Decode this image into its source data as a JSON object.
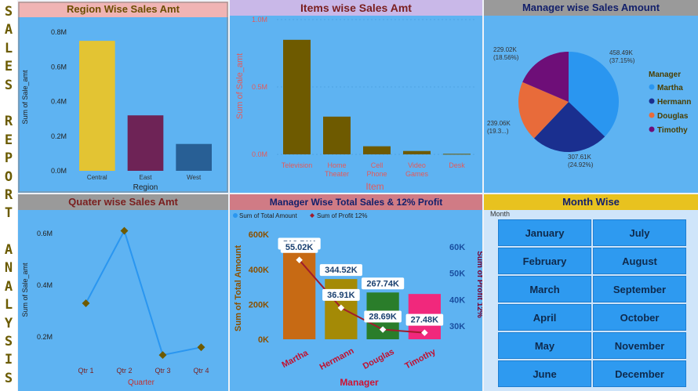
{
  "side_title": [
    "S",
    "A",
    "L",
    "E",
    "S",
    "",
    "R",
    "E",
    "P",
    "O",
    "R",
    "T",
    "",
    "A",
    "N",
    "A",
    "L",
    "Y",
    "S",
    "I",
    "S"
  ],
  "colors": {
    "panel": "#5eb3f2",
    "accent_gold": "#e3c433",
    "accent_purple": "#6e2356",
    "accent_blue": "#285f95"
  },
  "region": {
    "title": "Region Wise Sales Amt",
    "chart_data": {
      "type": "bar",
      "categories": [
        "Central",
        "East",
        "West"
      ],
      "values": [
        0.75,
        0.32,
        0.155
      ],
      "ylim": [
        0,
        0.85
      ],
      "yticks": [
        "0.0M",
        "0.2M",
        "0.4M",
        "0.6M",
        "0.8M"
      ],
      "xlabel": "Region",
      "ylabel": "Sum of Sale_amt",
      "colors": [
        "#e3c433",
        "#6e2356",
        "#285f95"
      ]
    }
  },
  "items": {
    "title": "Items wise Sales Amt",
    "chart_data": {
      "type": "bar",
      "categories": [
        "Television",
        "Home\nTheater",
        "Cell\nPhone",
        "Video\nGames",
        "Desk"
      ],
      "values": [
        0.85,
        0.28,
        0.06,
        0.025,
        0.004
      ],
      "ylim": [
        0,
        1.0
      ],
      "yticks": [
        "0.0M",
        "0.5M",
        "1.0M"
      ],
      "xlabel": "Item",
      "ylabel": "Sum of Sale_amt",
      "color": "#6e5a00"
    }
  },
  "manager_pie": {
    "title": "Manager wise Sales Amount",
    "legend_title": "Manager",
    "chart_data": {
      "type": "pie",
      "labels": [
        "Martha",
        "Hermann",
        "Douglas",
        "Timothy"
      ],
      "values": [
        458.49,
        307.61,
        239.06,
        229.02
      ],
      "percent": [
        "37.15%",
        "24.92%",
        "19.3...",
        "18.56%"
      ],
      "value_labels": [
        "458.49K",
        "307.61K",
        "239.06K",
        "229.02K"
      ],
      "colors": [
        "#2a96f0",
        "#1a2f8f",
        "#e86b3a",
        "#6e0e78"
      ],
      "legend": "right"
    }
  },
  "quarter": {
    "title": "Quater wise Sales Amt",
    "chart_data": {
      "type": "line",
      "categories": [
        "Qtr 1",
        "Qtr 2",
        "Qtr 3",
        "Qtr 4"
      ],
      "values": [
        0.33,
        0.61,
        0.13,
        0.16
      ],
      "ylim": [
        0.1,
        0.66
      ],
      "yticks": [
        {
          "v": 0.2,
          "t": "0.2M"
        },
        {
          "v": 0.4,
          "t": "0.4M"
        },
        {
          "v": 0.6,
          "t": "0.6M"
        }
      ],
      "xlabel": "Quarter",
      "ylabel": "Sum of Sale_amt",
      "color": "#2a96f0"
    }
  },
  "mgr_profit": {
    "title": "Manager Wise Total Sales & 12% Profit",
    "legend": [
      "Sum of Total Amount",
      "Sum of Profit 12%"
    ],
    "chart_data": {
      "type": "bar",
      "categories": [
        "Martha",
        "Hermann",
        "Douglas",
        "Timothy"
      ],
      "series": [
        {
          "name": "Sum of Total Amount",
          "values": [
            513.51,
            344.52,
            267.74,
            259.2
          ]
        },
        {
          "name": "Sum of Profit 12%",
          "values": [
            55.02,
            36.91,
            28.69,
            27.48
          ]
        }
      ],
      "bar_labels": [
        "513.51K",
        "344.52K",
        "267.74K",
        ""
      ],
      "line_labels": [
        "55.02K",
        "36.91K",
        "28.69K",
        "27.48K"
      ],
      "bar_colors": [
        "#c76a14",
        "#a48a06",
        "#2a7d2a",
        "#f1287c"
      ],
      "ylim_left": [
        0,
        650
      ],
      "left_ticks": [
        {
          "v": 0,
          "t": "0K"
        },
        {
          "v": 200,
          "t": "200K"
        },
        {
          "v": 400,
          "t": "400K"
        },
        {
          "v": 600,
          "t": "600K"
        }
      ],
      "ylim_right": [
        25,
        68
      ],
      "right_ticks": [
        {
          "v": 30,
          "t": "30K"
        },
        {
          "v": 40,
          "t": "40K"
        },
        {
          "v": 50,
          "t": "50K"
        },
        {
          "v": 60,
          "t": "60K"
        }
      ],
      "xlabel": "Manager",
      "ylabel_left": "Sum of Total Amount",
      "ylabel_right": "Sum of Profit 12%"
    }
  },
  "months": {
    "title": "Month Wise",
    "caption": "Month",
    "items": [
      "January",
      "July",
      "February",
      "August",
      "March",
      "September",
      "April",
      "October",
      "May",
      "November",
      "June",
      "December"
    ]
  }
}
